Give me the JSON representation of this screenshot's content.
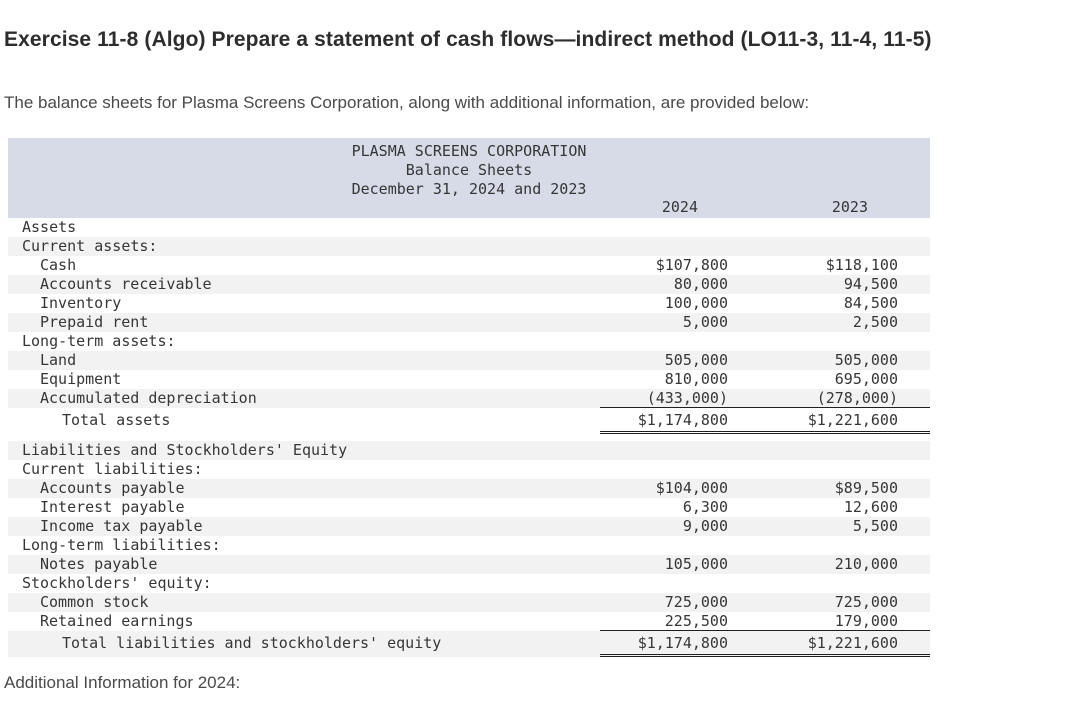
{
  "page": {
    "title": "Exercise 11-8 (Algo) Prepare a statement of cash flows—indirect method (LO11-3, 11-4, 11-5)",
    "intro": "The balance sheets for Plasma Screens Corporation, along with additional information, are provided below:",
    "footer_note": "Additional Information for 2024:"
  },
  "balance_sheet": {
    "company": "PLASMA SCREENS CORPORATION",
    "statement": "Balance Sheets",
    "period": "December 31, 2024 and 2023",
    "columns": [
      "2024",
      "2023"
    ],
    "colors": {
      "header_background": "#d7dbe7",
      "stripe_background": "#f2f2f2",
      "rule_color": "#1f1f1f"
    },
    "rows": [
      {
        "label": "Assets",
        "indent": 0,
        "v2024": "",
        "v2023": "",
        "rule": "",
        "total": false
      },
      {
        "label": "Current assets:",
        "indent": 0,
        "v2024": "",
        "v2023": "",
        "rule": "",
        "total": false
      },
      {
        "label": "Cash",
        "indent": 1,
        "v2024": "$107,800",
        "v2023": "$118,100",
        "rule": "",
        "total": false
      },
      {
        "label": "Accounts receivable",
        "indent": 1,
        "v2024": "80,000",
        "v2023": "94,500",
        "rule": "",
        "total": false
      },
      {
        "label": "Inventory",
        "indent": 1,
        "v2024": "100,000",
        "v2023": "84,500",
        "rule": "",
        "total": false
      },
      {
        "label": "Prepaid rent",
        "indent": 1,
        "v2024": "5,000",
        "v2023": "2,500",
        "rule": "",
        "total": false
      },
      {
        "label": "Long-term assets:",
        "indent": 0,
        "v2024": "",
        "v2023": "",
        "rule": "",
        "total": false
      },
      {
        "label": "Land",
        "indent": 1,
        "v2024": "505,000",
        "v2023": "505,000",
        "rule": "",
        "total": false
      },
      {
        "label": "Equipment",
        "indent": 1,
        "v2024": "810,000",
        "v2023": "695,000",
        "rule": "",
        "total": false
      },
      {
        "label": "Accumulated depreciation",
        "indent": 1,
        "v2024": "(433,000)",
        "v2023": "(278,000)",
        "rule": "single",
        "total": false
      },
      {
        "label": "Total assets",
        "indent": 2,
        "v2024": "$1,174,800",
        "v2023": "$1,221,600",
        "rule": "double",
        "total": true
      },
      {
        "label": "Liabilities and Stockholders' Equity",
        "indent": 0,
        "v2024": "",
        "v2023": "",
        "rule": "",
        "total": false
      },
      {
        "label": "Current liabilities:",
        "indent": 0,
        "v2024": "",
        "v2023": "",
        "rule": "",
        "total": false
      },
      {
        "label": "Accounts payable",
        "indent": 1,
        "v2024": "$104,000",
        "v2023": "$89,500",
        "rule": "",
        "total": false
      },
      {
        "label": "Interest payable",
        "indent": 1,
        "v2024": "6,300",
        "v2023": "12,600",
        "rule": "",
        "total": false
      },
      {
        "label": "Income tax payable",
        "indent": 1,
        "v2024": "9,000",
        "v2023": "5,500",
        "rule": "",
        "total": false
      },
      {
        "label": "Long-term liabilities:",
        "indent": 0,
        "v2024": "",
        "v2023": "",
        "rule": "",
        "total": false
      },
      {
        "label": "Notes payable",
        "indent": 1,
        "v2024": "105,000",
        "v2023": "210,000",
        "rule": "",
        "total": false
      },
      {
        "label": "Stockholders' equity:",
        "indent": 0,
        "v2024": "",
        "v2023": "",
        "rule": "",
        "total": false
      },
      {
        "label": "Common stock",
        "indent": 1,
        "v2024": "725,000",
        "v2023": "725,000",
        "rule": "",
        "total": false
      },
      {
        "label": "Retained earnings",
        "indent": 1,
        "v2024": "225,500",
        "v2023": "179,000",
        "rule": "single",
        "total": false
      },
      {
        "label": "Total liabilities and stockholders' equity",
        "indent": 2,
        "v2024": "$1,174,800",
        "v2023": "$1,221,600",
        "rule": "double",
        "total": true
      }
    ]
  }
}
